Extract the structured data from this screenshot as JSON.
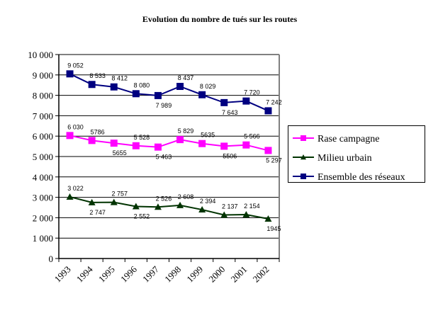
{
  "chart_data": {
    "type": "line",
    "title": "Evolution du nombre de tués sur les routes",
    "xlabel": "",
    "ylabel": "",
    "categories": [
      "1993",
      "1994",
      "1995",
      "1996",
      "1997",
      "1998",
      "1999",
      "2000",
      "2001",
      "2002"
    ],
    "ylim": [
      0,
      10000
    ],
    "yticks": [
      0,
      1000,
      2000,
      3000,
      4000,
      5000,
      6000,
      7000,
      8000,
      9000,
      10000
    ],
    "ytick_labels": [
      "0",
      "1 000",
      "2 000",
      "3 000",
      "4 000",
      "5 000",
      "6 000",
      "7 000",
      "8 000",
      "9 000",
      "10 000"
    ],
    "grid": true,
    "legend_position": "right",
    "series": [
      {
        "name": "Rase campagne",
        "color": "#ff00ff",
        "marker": "square",
        "values": [
          6030,
          5786,
          5655,
          5528,
          5463,
          5829,
          5635,
          5506,
          5566,
          5297
        ],
        "labels": [
          "6 030",
          "5786",
          "5655",
          "5 528",
          "5 463",
          "5 829",
          "5635",
          "5506",
          "5 566",
          "5 297"
        ]
      },
      {
        "name": "Milieu urbain",
        "color": "#003300",
        "marker": "triangle",
        "values": [
          3022,
          2747,
          2757,
          2552,
          2526,
          2608,
          2394,
          2137,
          2154,
          1945
        ],
        "labels": [
          "3 022",
          "2 747",
          "2 757",
          "2 552",
          "2 526",
          "2 608",
          "2 394",
          "2 137",
          "2 154",
          "1945"
        ]
      },
      {
        "name": "Ensemble des réseaux",
        "color": "#000080",
        "marker": "square",
        "values": [
          9052,
          8533,
          8412,
          8080,
          7989,
          8437,
          8029,
          7643,
          7720,
          7242
        ],
        "labels": [
          "9 052",
          "8 533",
          "8 412",
          "8 080",
          "7 989",
          "8 437",
          "8 029",
          "7 643",
          "7 720",
          "7 242"
        ]
      }
    ]
  }
}
